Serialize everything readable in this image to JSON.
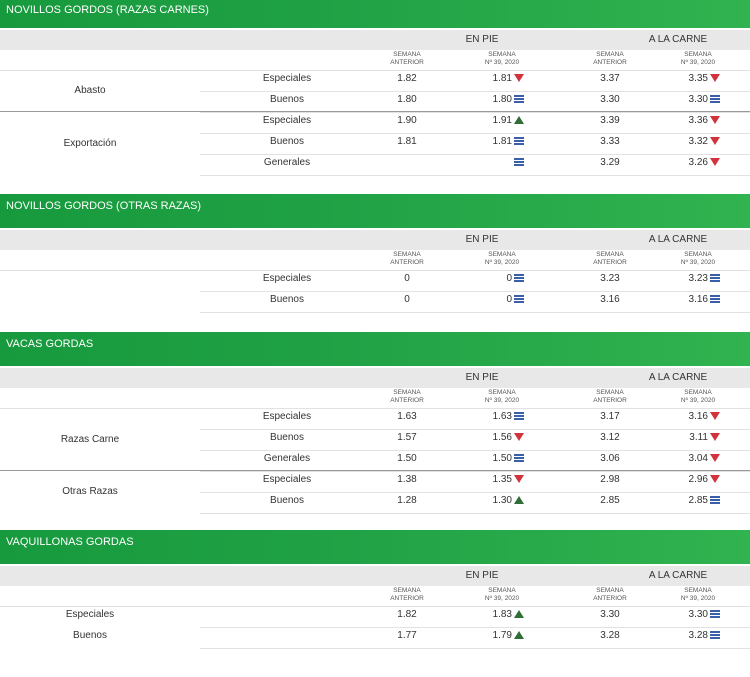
{
  "labels": {
    "en_pie": "EN PIE",
    "a_la_carne": "A LA CARNE",
    "semana": "SEMANA",
    "anterior": "ANTERIOR",
    "semana_num": "Nº 39, 2020"
  },
  "sections": [
    {
      "title": "NOVILLOS GORDOS (RAZAS CARNES)",
      "groups": [
        {
          "name": "Abasto",
          "rows": [
            {
              "label": "Especiales",
              "pie_ant": "1.82",
              "pie_act": "1.81",
              "pie_ind": "down",
              "car_ant": "3.37",
              "car_act": "3.35",
              "car_ind": "down"
            },
            {
              "label": "Buenos",
              "pie_ant": "1.80",
              "pie_act": "1.80",
              "pie_ind": "eq",
              "car_ant": "3.30",
              "car_act": "3.30",
              "car_ind": "eq"
            }
          ]
        },
        {
          "name": "Exportación",
          "rows": [
            {
              "label": "Especiales",
              "pie_ant": "1.90",
              "pie_act": "1.91",
              "pie_ind": "up",
              "car_ant": "3.39",
              "car_act": "3.36",
              "car_ind": "down"
            },
            {
              "label": "Buenos",
              "pie_ant": "1.81",
              "pie_act": "1.81",
              "pie_ind": "eq",
              "car_ant": "3.33",
              "car_act": "3.32",
              "car_ind": "down"
            },
            {
              "label": "Generales",
              "pie_ant": "",
              "pie_act": "",
              "pie_ind": "eq",
              "car_ant": "3.29",
              "car_act": "3.26",
              "car_ind": "down"
            }
          ]
        }
      ]
    },
    {
      "title": "NOVILLOS GORDOS (OTRAS RAZAS)",
      "groups": [
        {
          "name": "",
          "rows": [
            {
              "label": "Especiales",
              "pie_ant": "0",
              "pie_act": "0",
              "pie_ind": "eq",
              "car_ant": "3.23",
              "car_act": "3.23",
              "car_ind": "eq"
            },
            {
              "label": "Buenos",
              "pie_ant": "0",
              "pie_act": "0",
              "pie_ind": "eq",
              "car_ant": "3.16",
              "car_act": "3.16",
              "car_ind": "eq"
            }
          ]
        }
      ]
    },
    {
      "title": "VACAS GORDAS",
      "groups": [
        {
          "name": "Razas Carne",
          "rows": [
            {
              "label": "Especiales",
              "pie_ant": "1.63",
              "pie_act": "1.63",
              "pie_ind": "eq",
              "car_ant": "3.17",
              "car_act": "3.16",
              "car_ind": "down"
            },
            {
              "label": "Buenos",
              "pie_ant": "1.57",
              "pie_act": "1.56",
              "pie_ind": "down",
              "car_ant": "3.12",
              "car_act": "3.11",
              "car_ind": "down"
            },
            {
              "label": "Generales",
              "pie_ant": "1.50",
              "pie_act": "1.50",
              "pie_ind": "eq",
              "car_ant": "3.06",
              "car_act": "3.04",
              "car_ind": "down"
            }
          ]
        },
        {
          "name": "Otras Razas",
          "rows": [
            {
              "label": "Especiales",
              "pie_ant": "1.38",
              "pie_act": "1.35",
              "pie_ind": "down",
              "car_ant": "2.98",
              "car_act": "2.96",
              "car_ind": "down"
            },
            {
              "label": "Buenos",
              "pie_ant": "1.28",
              "pie_act": "1.30",
              "pie_ind": "up",
              "car_ant": "2.85",
              "car_act": "2.85",
              "car_ind": "eq"
            }
          ]
        }
      ]
    },
    {
      "title": "VAQUILLONAS GORDAS",
      "groups": [
        {
          "name": "",
          "rows": [
            {
              "label": "Especiales",
              "pie_ant": "1.82",
              "pie_act": "1.83",
              "pie_ind": "up",
              "car_ant": "3.30",
              "car_act": "3.30",
              "car_ind": "eq"
            },
            {
              "label": "Buenos",
              "pie_ant": "1.77",
              "pie_act": "1.79",
              "pie_ind": "up",
              "car_ant": "3.28",
              "car_act": "3.28",
              "car_ind": "eq"
            }
          ]
        }
      ]
    }
  ],
  "colors": {
    "header_green": "#1fa044",
    "up": "#2f6e36",
    "down": "#d2323c",
    "equal": "#3b5ea8"
  }
}
